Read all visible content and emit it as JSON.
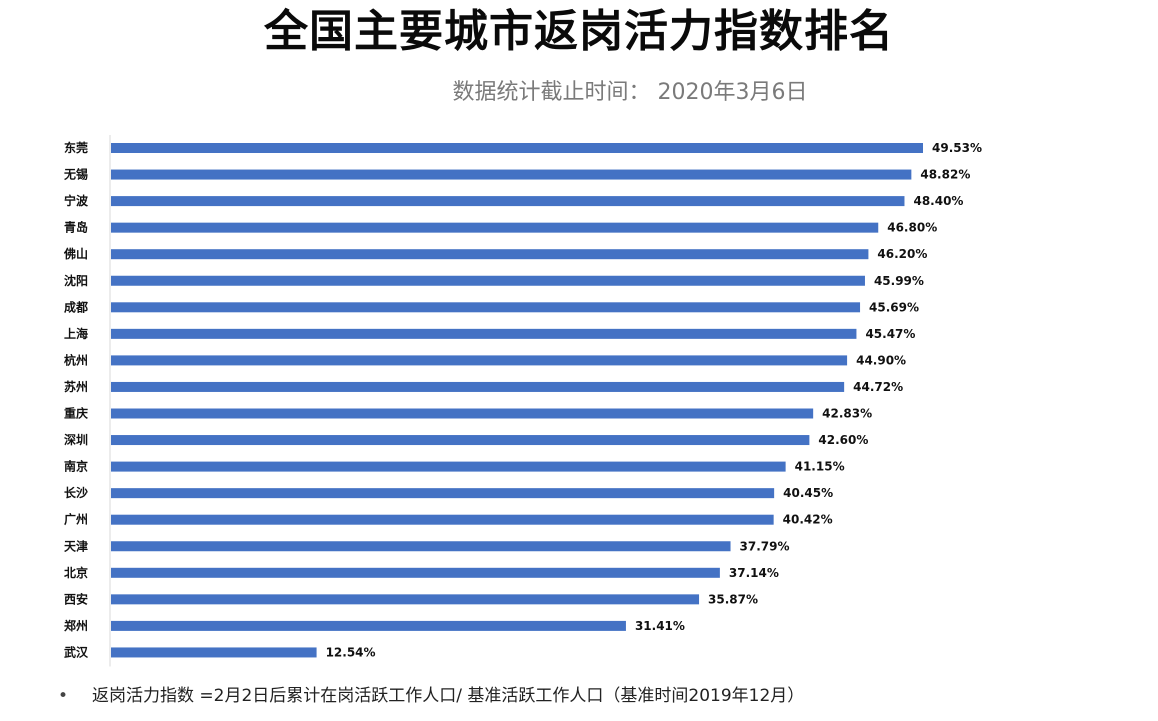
{
  "title": "全国主要城市返岗活力指数排名",
  "subtitle": "数据统计截止时间： 2020年3月6日",
  "footnote": {
    "bullet": "•",
    "text": "返岗活力指数 =2月2日后累计在岗活跃工作人口/ 基准活跃工作人口（基准时间2019年12月）"
  },
  "colors": {
    "bar": "#4472C4",
    "axis": "#d9d9d9",
    "label": "#111111"
  },
  "chart_data": {
    "type": "bar",
    "orientation": "horizontal",
    "categories": [
      "东莞",
      "无锡",
      "宁波",
      "青岛",
      "佛山",
      "沈阳",
      "成都",
      "上海",
      "杭州",
      "苏州",
      "重庆",
      "深圳",
      "南京",
      "长沙",
      "广州",
      "天津",
      "北京",
      "西安",
      "郑州",
      "武汉"
    ],
    "values": [
      49.53,
      48.82,
      48.4,
      46.8,
      46.2,
      45.99,
      45.69,
      45.47,
      44.9,
      44.72,
      42.83,
      42.6,
      41.15,
      40.45,
      40.42,
      37.79,
      37.14,
      35.87,
      31.41,
      12.54
    ],
    "value_labels": [
      "49.53%",
      "48.82%",
      "48.40%",
      "46.80%",
      "46.20%",
      "45.99%",
      "45.69%",
      "45.47%",
      "44.90%",
      "44.72%",
      "42.83%",
      "42.60%",
      "41.15%",
      "40.45%",
      "40.42%",
      "37.79%",
      "37.14%",
      "35.87%",
      "31.41%",
      "12.54%"
    ],
    "xlim": [
      0,
      50
    ],
    "grid": false,
    "legend": "none"
  }
}
